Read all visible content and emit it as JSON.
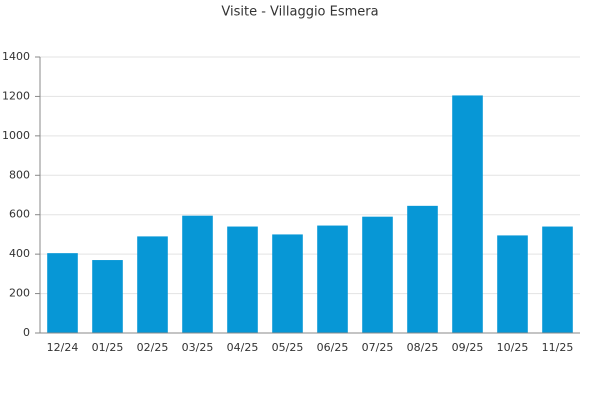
{
  "chart_data": {
    "type": "bar",
    "title": "Visite - Villaggio Esmera",
    "categories": [
      "12/24",
      "01/25",
      "02/25",
      "03/25",
      "04/25",
      "05/25",
      "06/25",
      "07/25",
      "08/25",
      "09/25",
      "10/25",
      "11/25"
    ],
    "values": [
      405,
      370,
      490,
      595,
      540,
      500,
      545,
      590,
      645,
      1205,
      495,
      540
    ],
    "color": "#0797d6",
    "ylim": [
      0,
      1400
    ],
    "yticks": [
      0,
      200,
      400,
      600,
      800,
      1000,
      1200,
      1400
    ],
    "grid": true
  }
}
